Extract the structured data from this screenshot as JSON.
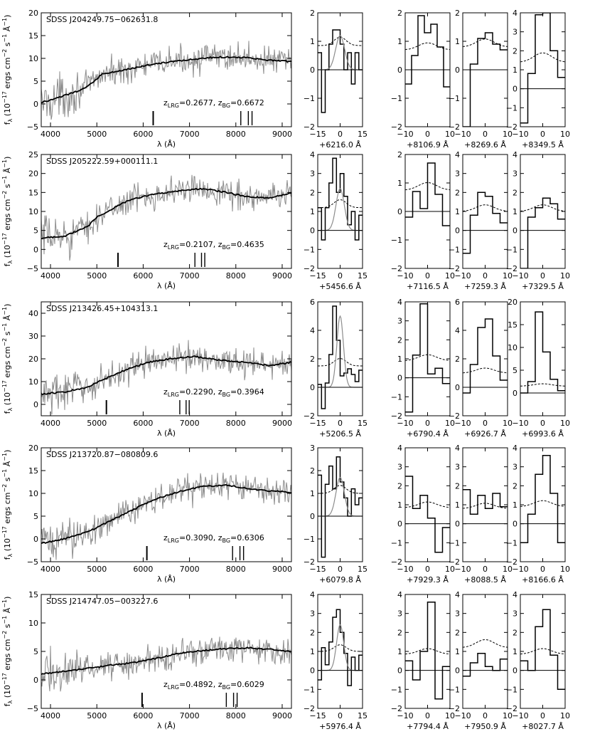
{
  "chart_data": {
    "type": "line",
    "xlabel": "λ (Å)",
    "ylabel": "fλ (10⁻¹⁷ ergs cm⁻² s⁻¹ Å⁻¹)",
    "ylabel_parts": {
      "f": "f",
      "lambda_sub": "λ",
      "rest": " (10",
      "exp": "−17",
      "tail": " ergs cm",
      "exp2": "−2",
      "tail2": " s",
      "exp3": "−1",
      "tail3": " Å",
      "exp4": "−1",
      "close": ")"
    },
    "line_xlabel_suffix": " Å",
    "spectrum_xlim": [
      3800,
      9200
    ],
    "spectrum_xticks": [
      4000,
      5000,
      6000,
      7000,
      8000,
      9000
    ],
    "rows": [
      {
        "name": "SDSS J204249.75−062631.8",
        "z_lrg": "0.2677",
        "z_bg": "0.6672",
        "spectrum_ylim": [
          -5,
          20
        ],
        "spectrum_yticks": [
          -5,
          0,
          5,
          10,
          15,
          20
        ],
        "model_knots": [
          [
            3800,
            0.3
          ],
          [
            4200,
            1.5
          ],
          [
            4700,
            3.2
          ],
          [
            4950,
            5.0
          ],
          [
            5100,
            6.5
          ],
          [
            5600,
            7.5
          ],
          [
            6100,
            8.5
          ],
          [
            6600,
            9.3
          ],
          [
            7100,
            9.8
          ],
          [
            7600,
            10.3
          ],
          [
            8200,
            10.2
          ],
          [
            8700,
            9.6
          ],
          [
            9200,
            9.3
          ]
        ],
        "markers": [
          6216.0,
          8106.9,
          8269.6,
          8349.5
        ],
        "line_panels": [
          {
            "center": "+6216.0",
            "xlim": [
              -15,
              15
            ],
            "xticks": [
              -15,
              0,
              15
            ],
            "ylim": [
              -2,
              2
            ],
            "yticks": [
              -2,
              -1,
              0,
              1,
              2
            ],
            "steps": [
              0.6,
              -1.5,
              0.0,
              0.9,
              1.4,
              1.4,
              0.9,
              0.0,
              0.6,
              -0.5,
              0.6,
              0.0
            ],
            "noise": 0.85,
            "gauss_amp": 1.2,
            "gauss_sigma": 3.0
          },
          {
            "center": "+8106.9",
            "xlim": [
              -10,
              10
            ],
            "xticks": [
              -10,
              0,
              10
            ],
            "ylim": [
              -2,
              2
            ],
            "yticks": [
              -2,
              -1,
              0,
              1,
              2
            ],
            "steps": [
              -0.5,
              0.5,
              1.9,
              1.3,
              1.6,
              0.8,
              -0.6
            ],
            "noise": 0.7
          },
          {
            "center": "+8269.6",
            "xlim": [
              -10,
              10
            ],
            "xticks": [
              -10,
              0,
              10
            ],
            "ylim": [
              -2,
              2
            ],
            "yticks": [
              -2,
              -1,
              0,
              1,
              2
            ],
            "steps": [
              -2.0,
              0.2,
              1.1,
              1.3,
              0.9,
              0.7
            ],
            "noise": 0.8
          },
          {
            "center": "+8349.5",
            "xlim": [
              -10,
              10
            ],
            "xticks": [
              -10,
              0,
              10
            ],
            "ylim": [
              -2,
              4
            ],
            "yticks": [
              -2,
              -1,
              0,
              1,
              2,
              3,
              4
            ],
            "steps": [
              -1.8,
              0.8,
              3.9,
              4.0,
              2.0,
              0.6
            ],
            "noise": 1.4
          }
        ]
      },
      {
        "name": "SDSS J205222.59+000111.1",
        "z_lrg": "0.2107",
        "z_bg": "0.4635",
        "spectrum_ylim": [
          -5,
          25
        ],
        "spectrum_yticks": [
          -5,
          0,
          5,
          10,
          15,
          20,
          25
        ],
        "model_knots": [
          [
            3800,
            3.0
          ],
          [
            4300,
            3.5
          ],
          [
            4800,
            6.0
          ],
          [
            5000,
            8.5
          ],
          [
            5300,
            10.5
          ],
          [
            5700,
            13.0
          ],
          [
            6200,
            14.5
          ],
          [
            6800,
            15.5
          ],
          [
            7300,
            16.0
          ],
          [
            7800,
            15.0
          ],
          [
            8200,
            14.0
          ],
          [
            8700,
            13.5
          ],
          [
            9200,
            14.8
          ]
        ],
        "markers": [
          5456.6,
          7116.5,
          7259.3,
          7329.5
        ],
        "line_panels": [
          {
            "center": "+5456.6",
            "xlim": [
              -15,
              15
            ],
            "xticks": [
              -15,
              0,
              15
            ],
            "ylim": [
              -2,
              4
            ],
            "yticks": [
              -2,
              -1,
              0,
              1,
              2,
              3,
              4
            ],
            "steps": [
              1.2,
              -0.5,
              1.2,
              2.5,
              3.8,
              2.0,
              3.0,
              1.8,
              0.3,
              1.0,
              -0.5,
              0.8
            ],
            "noise": 1.2,
            "gauss_amp": 2.2,
            "gauss_sigma": 2.8
          },
          {
            "center": "+7116.5",
            "xlim": [
              -10,
              10
            ],
            "xticks": [
              -10,
              0,
              10
            ],
            "ylim": [
              -2,
              2
            ],
            "yticks": [
              -2,
              -1,
              0,
              1,
              2
            ],
            "steps": [
              -0.2,
              0.7,
              0.1,
              1.7,
              0.6,
              -0.5
            ],
            "noise": 0.75
          },
          {
            "center": "+7259.3",
            "xlim": [
              -10,
              10
            ],
            "xticks": [
              -10,
              0,
              10
            ],
            "ylim": [
              -2,
              4
            ],
            "yticks": [
              -2,
              -1,
              0,
              1,
              2,
              3,
              4
            ],
            "steps": [
              -1.2,
              0.8,
              2.0,
              1.8,
              0.9,
              0.4
            ],
            "noise": 1.0
          },
          {
            "center": "+7329.5",
            "xlim": [
              -10,
              10
            ],
            "xticks": [
              -10,
              0,
              10
            ],
            "ylim": [
              -2,
              4
            ],
            "yticks": [
              -2,
              -1,
              0,
              1,
              2,
              3,
              4
            ],
            "steps": [
              -2.0,
              0.7,
              1.2,
              1.7,
              1.4,
              0.6
            ],
            "noise": 1.0
          }
        ]
      },
      {
        "name": "SDSS J213426.45+104313.1",
        "z_lrg": "0.2290",
        "z_bg": "0.3964",
        "spectrum_ylim": [
          -5,
          45
        ],
        "spectrum_yticks": [
          0,
          10,
          20,
          30,
          40
        ],
        "model_knots": [
          [
            3800,
            4.5
          ],
          [
            4300,
            5.5
          ],
          [
            4800,
            7.5
          ],
          [
            5100,
            10.5
          ],
          [
            5600,
            15.0
          ],
          [
            6100,
            18.5
          ],
          [
            6600,
            20.0
          ],
          [
            7100,
            21.0
          ],
          [
            7600,
            19.5
          ],
          [
            8200,
            18.5
          ],
          [
            8700,
            17.0
          ],
          [
            9200,
            18.5
          ]
        ],
        "markers": [
          5206.5,
          6790.4,
          6926.7,
          6993.6
        ],
        "line_panels": [
          {
            "center": "+5206.5",
            "xlim": [
              -15,
              15
            ],
            "xticks": [
              -15,
              0,
              15
            ],
            "ylim": [
              -2,
              6
            ],
            "yticks": [
              -2,
              0,
              2,
              4,
              6
            ],
            "steps": [
              0.2,
              -1.5,
              0.3,
              2.3,
              5.7,
              3.3,
              0.8,
              1.0,
              1.3,
              0.9,
              0.4,
              1.2
            ],
            "noise": 1.5,
            "gauss_amp": 5.0,
            "gauss_sigma": 2.2
          },
          {
            "center": "+6790.4",
            "xlim": [
              -10,
              10
            ],
            "xticks": [
              -10,
              0,
              10
            ],
            "ylim": [
              -2,
              4
            ],
            "yticks": [
              -2,
              -1,
              0,
              1,
              2,
              3,
              4
            ],
            "steps": [
              -1.8,
              1.2,
              3.9,
              0.2,
              0.5,
              -0.3
            ],
            "noise": 0.9
          },
          {
            "center": "+6926.7",
            "xlim": [
              -10,
              10
            ],
            "xticks": [
              -10,
              0,
              10
            ],
            "ylim": [
              -2,
              6
            ],
            "yticks": [
              -2,
              0,
              2,
              4,
              6
            ],
            "steps": [
              -0.4,
              1.6,
              4.2,
              4.8,
              2.2,
              0.5
            ],
            "noise": 1.0
          },
          {
            "center": "+6993.6",
            "xlim": [
              -10,
              10
            ],
            "xticks": [
              -10,
              0,
              10
            ],
            "ylim": [
              -5,
              20
            ],
            "yticks": [
              0,
              5,
              10,
              15,
              20
            ],
            "steps": [
              0.0,
              2.5,
              17.8,
              9.0,
              3.0,
              0.5
            ],
            "noise": 1.5
          }
        ]
      },
      {
        "name": "SDSS J213720.87−080809.6",
        "z_lrg": "0.3090",
        "z_bg": "0.6306",
        "spectrum_ylim": [
          -5,
          20
        ],
        "spectrum_yticks": [
          -5,
          0,
          5,
          10,
          15,
          20
        ],
        "model_knots": [
          [
            3800,
            -1.0
          ],
          [
            4300,
            0.0
          ],
          [
            4800,
            1.5
          ],
          [
            5200,
            3.5
          ],
          [
            5700,
            6.0
          ],
          [
            6200,
            8.5
          ],
          [
            6800,
            10.5
          ],
          [
            7300,
            11.5
          ],
          [
            7800,
            11.8
          ],
          [
            8300,
            11.0
          ],
          [
            8800,
            10.5
          ],
          [
            9200,
            10.2
          ]
        ],
        "markers": [
          6079.8,
          7929.3,
          8088.5,
          8166.6
        ],
        "line_panels": [
          {
            "center": "+6079.8",
            "xlim": [
              -15,
              15
            ],
            "xticks": [
              -15,
              0,
              15
            ],
            "ylim": [
              -2,
              3
            ],
            "yticks": [
              -2,
              -1,
              0,
              1,
              2,
              3
            ],
            "steps": [
              1.8,
              -1.8,
              1.4,
              2.2,
              1.2,
              2.6,
              1.5,
              0.8,
              0.0,
              1.2,
              0.5,
              0.8
            ],
            "noise": 1.0,
            "gauss_amp": 1.7,
            "gauss_sigma": 2.8
          },
          {
            "center": "+7929.3",
            "xlim": [
              -10,
              10
            ],
            "xticks": [
              -10,
              0,
              10
            ],
            "ylim": [
              -2,
              4
            ],
            "yticks": [
              -2,
              -1,
              0,
              1,
              2,
              3,
              4
            ],
            "steps": [
              2.5,
              0.8,
              1.5,
              0.3,
              -1.5,
              -0.2
            ],
            "noise": 0.85
          },
          {
            "center": "+8088.5",
            "xlim": [
              -10,
              10
            ],
            "xticks": [
              -10,
              0,
              10
            ],
            "ylim": [
              -2,
              4
            ],
            "yticks": [
              -2,
              -1,
              0,
              1,
              2,
              3,
              4
            ],
            "steps": [
              1.8,
              0.5,
              1.5,
              0.8,
              1.6,
              0.9
            ],
            "noise": 0.8
          },
          {
            "center": "+8166.6",
            "xlim": [
              -10,
              10
            ],
            "xticks": [
              -10,
              0,
              10
            ],
            "ylim": [
              -2,
              4
            ],
            "yticks": [
              -2,
              -1,
              0,
              1,
              2,
              3,
              4
            ],
            "steps": [
              -1.0,
              0.5,
              2.6,
              3.6,
              1.6,
              -1.0
            ],
            "noise": 0.9
          }
        ]
      },
      {
        "name": "SDSS J214747.05−003227.6",
        "z_lrg": "0.4892",
        "z_bg": "0.6029",
        "spectrum_ylim": [
          -5,
          15
        ],
        "spectrum_yticks": [
          -5,
          0,
          5,
          10,
          15
        ],
        "model_knots": [
          [
            3800,
            1.0
          ],
          [
            4300,
            1.5
          ],
          [
            4800,
            2.0
          ],
          [
            5300,
            2.6
          ],
          [
            5800,
            3.0
          ],
          [
            6300,
            3.8
          ],
          [
            6800,
            4.7
          ],
          [
            7300,
            5.2
          ],
          [
            7800,
            5.5
          ],
          [
            8300,
            5.6
          ],
          [
            8800,
            5.3
          ],
          [
            9200,
            5.0
          ]
        ],
        "markers": [
          5976.4,
          7794.4,
          7950.9,
          8027.7
        ],
        "line_panels": [
          {
            "center": "+5976.4",
            "xlim": [
              -15,
              15
            ],
            "xticks": [
              -15,
              0,
              15
            ],
            "ylim": [
              -2,
              4
            ],
            "yticks": [
              -2,
              -1,
              0,
              1,
              2,
              3,
              4
            ],
            "steps": [
              -0.5,
              1.2,
              0.3,
              1.5,
              2.8,
              3.2,
              2.0,
              0.9,
              -0.8,
              0.7,
              0.0,
              0.8
            ],
            "noise": 1.0,
            "gauss_amp": 2.4,
            "gauss_sigma": 2.4
          },
          {
            "center": "+7794.4",
            "xlim": [
              -10,
              10
            ],
            "xticks": [
              -10,
              0,
              10
            ],
            "ylim": [
              -2,
              4
            ],
            "yticks": [
              -2,
              -1,
              0,
              1,
              2,
              3,
              4
            ],
            "steps": [
              0.5,
              -0.5,
              1.0,
              3.6,
              -1.5,
              0.2
            ],
            "noise": 0.85
          },
          {
            "center": "+7950.9",
            "xlim": [
              -10,
              10
            ],
            "xticks": [
              -10,
              0,
              10
            ],
            "ylim": [
              -2,
              4
            ],
            "yticks": [
              -2,
              -1,
              0,
              1,
              2,
              3,
              4
            ],
            "steps": [
              -0.3,
              0.4,
              0.9,
              0.2,
              0.0,
              0.6
            ],
            "noise": 1.2
          },
          {
            "center": "+8027.7",
            "xlim": [
              -10,
              10
            ],
            "xticks": [
              -10,
              0,
              10
            ],
            "ylim": [
              -2,
              4
            ],
            "yticks": [
              -2,
              -1,
              0,
              1,
              2,
              3,
              4
            ],
            "steps": [
              0.5,
              0.0,
              2.3,
              3.2,
              0.8,
              -1.0
            ],
            "noise": 0.85
          }
        ]
      }
    ]
  }
}
